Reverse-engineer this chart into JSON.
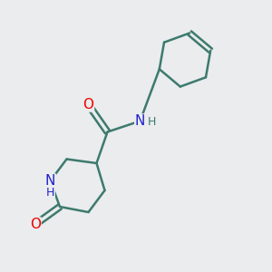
{
  "bg_color": "#eaeced",
  "bond_color": "#3d7a6e",
  "O_color": "#ee0000",
  "N_color": "#2222cc",
  "line_width": 1.8,
  "font_size_atom": 11,
  "font_size_H": 9,
  "figsize": [
    3.0,
    3.0
  ],
  "dpi": 100,
  "xlim": [
    0,
    10
  ],
  "ylim": [
    0,
    10
  ]
}
